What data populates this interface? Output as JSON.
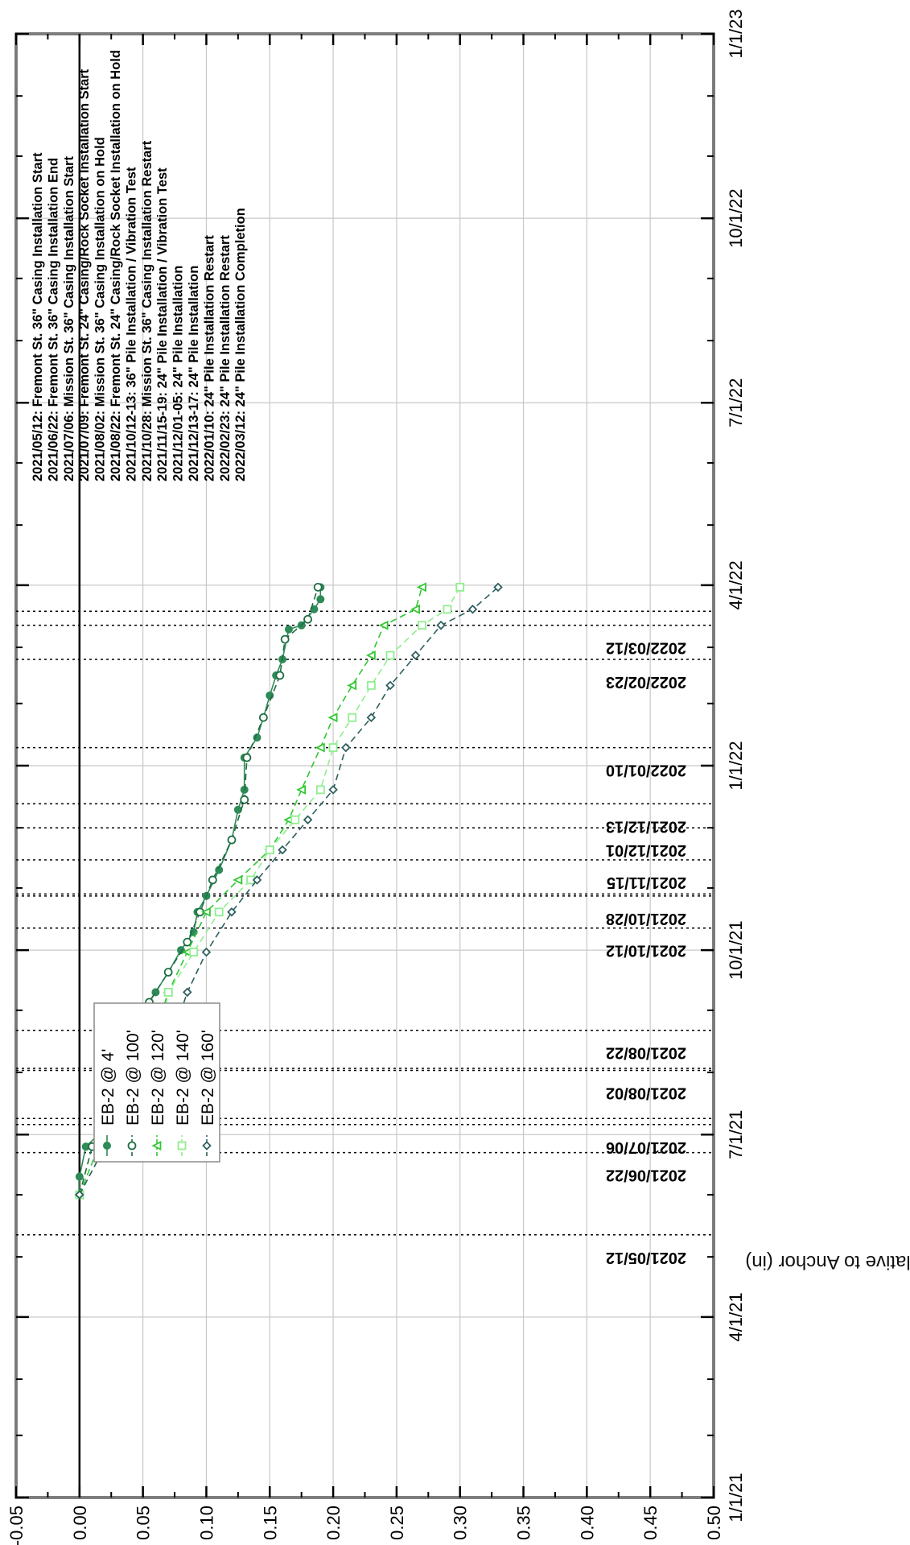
{
  "chart_data": {
    "type": "line",
    "orientation": "rotated-90",
    "ylabel": "Settlement Relative to Anchor (in)",
    "xlabel": "",
    "ylim": [
      -0.05,
      0.5
    ],
    "y_ticks": [
      "-0.05",
      "0.00",
      "0.05",
      "0.10",
      "0.15",
      "0.20",
      "0.25",
      "0.30",
      "0.35",
      "0.40",
      "0.45",
      "0.50"
    ],
    "x_range": [
      "2021-01-01",
      "2023-01-01"
    ],
    "x_ticks": [
      {
        "date": "2021-01-01",
        "label": "1/1/21"
      },
      {
        "date": "2021-04-01",
        "label": "4/1/21"
      },
      {
        "date": "2021-07-01",
        "label": "7/1/21"
      },
      {
        "date": "2021-10-01",
        "label": "10/1/21"
      },
      {
        "date": "2022-01-01",
        "label": "1/1/22"
      },
      {
        "date": "2022-04-01",
        "label": "4/1/22"
      },
      {
        "date": "2022-07-01",
        "label": "7/1/22"
      },
      {
        "date": "2022-10-01",
        "label": "10/1/22"
      },
      {
        "date": "2023-01-01",
        "label": "1/1/23"
      }
    ],
    "grid": true,
    "legend_position": "bottom-left (rotated view)",
    "event_lines": [
      {
        "date": "2021-05-12",
        "label": "2021/05/12"
      },
      {
        "date": "2021-06-22",
        "label": "2021/06/22"
      },
      {
        "date": "2021-07-06",
        "label": "2021/07/06"
      },
      {
        "date": "2021-07-09",
        "label": ""
      },
      {
        "date": "2021-08-02",
        "label": "2021/08/02"
      },
      {
        "date": "2021-08-03",
        "label": ""
      },
      {
        "date": "2021-08-22",
        "label": "2021/08/22"
      },
      {
        "date": "2021-10-12",
        "label": "2021/10/12"
      },
      {
        "date": "2021-10-28",
        "label": "2021/10/28"
      },
      {
        "date": "2021-10-29",
        "label": ""
      },
      {
        "date": "2021-11-15",
        "label": "2021/11/15"
      },
      {
        "date": "2021-12-01",
        "label": "2021/12/01"
      },
      {
        "date": "2021-12-13",
        "label": "2021/12/13"
      },
      {
        "date": "2022-01-10",
        "label": "2022/01/10"
      },
      {
        "date": "2022-02-23",
        "label": "2022/02/23"
      },
      {
        "date": "2022-03-12",
        "label": "2022/03/12"
      },
      {
        "date": "2022-03-19",
        "label": ""
      }
    ],
    "annotations": [
      "2021/05/12: Fremont St. 36\" Casing Installation Start",
      "2021/06/22: Fremont St. 36\" Casing Installation End",
      "2021/07/06: Mission St.  36\" Casing Installation Start",
      "2021/07/09: Fremont St. 24\" Casing/Rock Socket Installation Start",
      "2021/08/02: Mission St.  36\" Casing Installation on Hold",
      "2021/08/22: Fremont St. 24\" Casing/Rock Socket Installation on Hold",
      "2021/10/12-13: 36\" Pile Installation / Vibration Test",
      "2021/10/28: Mission St.  36\" Casing Installation Restart",
      "2021/11/15-19: 24\" Pile Installation / Vibration Test",
      "2021/12/01-05: 24\" Pile Installation",
      "2021/12/13-17: 24\" Pile Installation",
      "2022/01/10: 24\" Pile Installation Restart",
      "2022/02/23: 24\" Pile Installation Restart",
      "2022/03/12: 24\" Pile Installation Completion"
    ],
    "series": [
      {
        "name": "EB-2 @ 4'",
        "color": "#2e8b57",
        "marker": "filled-circle",
        "dash": "none",
        "points": [
          [
            "2021-06-01",
            0.0
          ],
          [
            "2021-06-10",
            0.0
          ],
          [
            "2021-06-25",
            0.005
          ],
          [
            "2021-07-01",
            0.015
          ],
          [
            "2021-07-10",
            0.02
          ],
          [
            "2021-07-20",
            0.03
          ],
          [
            "2021-08-01",
            0.035
          ],
          [
            "2021-08-10",
            0.04
          ],
          [
            "2021-08-22",
            0.045
          ],
          [
            "2021-09-01",
            0.05
          ],
          [
            "2021-09-10",
            0.06
          ],
          [
            "2021-09-20",
            0.07
          ],
          [
            "2021-10-01",
            0.08
          ],
          [
            "2021-10-10",
            0.09
          ],
          [
            "2021-10-20",
            0.093
          ],
          [
            "2021-10-28",
            0.1
          ],
          [
            "2021-11-10",
            0.11
          ],
          [
            "2021-11-25",
            0.12
          ],
          [
            "2021-12-10",
            0.125
          ],
          [
            "2021-12-20",
            0.13
          ],
          [
            "2022-01-05",
            0.13
          ],
          [
            "2022-01-15",
            0.14
          ],
          [
            "2022-01-25",
            0.145
          ],
          [
            "2022-02-05",
            0.15
          ],
          [
            "2022-02-15",
            0.155
          ],
          [
            "2022-02-23",
            0.16
          ],
          [
            "2022-03-10",
            0.165
          ],
          [
            "2022-03-12",
            0.175
          ],
          [
            "2022-03-20",
            0.185
          ],
          [
            "2022-03-25",
            0.19
          ],
          [
            "2022-03-31",
            0.19
          ]
        ]
      },
      {
        "name": "EB-2 @ 100'",
        "color": "#1f6e43",
        "marker": "open-circle",
        "dash": "dash",
        "points": [
          [
            "2021-06-01",
            0.0
          ],
          [
            "2021-06-25",
            0.01
          ],
          [
            "2021-07-05",
            0.02
          ],
          [
            "2021-07-20",
            0.03
          ],
          [
            "2021-08-05",
            0.04
          ],
          [
            "2021-08-22",
            0.048
          ],
          [
            "2021-09-05",
            0.055
          ],
          [
            "2021-09-20",
            0.07
          ],
          [
            "2021-10-05",
            0.085
          ],
          [
            "2021-10-20",
            0.095
          ],
          [
            "2021-11-05",
            0.105
          ],
          [
            "2021-11-25",
            0.12
          ],
          [
            "2021-12-15",
            0.13
          ],
          [
            "2022-01-05",
            0.132
          ],
          [
            "2022-01-25",
            0.145
          ],
          [
            "2022-02-15",
            0.158
          ],
          [
            "2022-03-05",
            0.162
          ],
          [
            "2022-03-15",
            0.18
          ],
          [
            "2022-03-31",
            0.188
          ]
        ]
      },
      {
        "name": "EB-2 @ 120'",
        "color": "#32c832",
        "marker": "triangle",
        "dash": "dash",
        "points": [
          [
            "2021-06-01",
            0.0
          ],
          [
            "2021-06-25",
            0.015
          ],
          [
            "2021-07-10",
            0.03
          ],
          [
            "2021-08-01",
            0.045
          ],
          [
            "2021-08-22",
            0.06
          ],
          [
            "2021-09-10",
            0.07
          ],
          [
            "2021-09-30",
            0.085
          ],
          [
            "2021-10-20",
            0.1
          ],
          [
            "2021-11-05",
            0.125
          ],
          [
            "2021-11-20",
            0.15
          ],
          [
            "2021-12-05",
            0.165
          ],
          [
            "2021-12-20",
            0.175
          ],
          [
            "2022-01-10",
            0.19
          ],
          [
            "2022-01-25",
            0.2
          ],
          [
            "2022-02-10",
            0.215
          ],
          [
            "2022-02-25",
            0.23
          ],
          [
            "2022-03-12",
            0.24
          ],
          [
            "2022-03-20",
            0.265
          ],
          [
            "2022-03-31",
            0.27
          ]
        ]
      },
      {
        "name": "EB-2 @ 140'",
        "color": "#90ee90",
        "marker": "open-square",
        "dash": "dash",
        "points": [
          [
            "2021-06-01",
            0.0
          ],
          [
            "2021-06-25",
            0.02
          ],
          [
            "2021-07-10",
            0.035
          ],
          [
            "2021-08-01",
            0.05
          ],
          [
            "2021-08-22",
            0.065
          ],
          [
            "2021-09-10",
            0.07
          ],
          [
            "2021-09-30",
            0.09
          ],
          [
            "2021-10-20",
            0.11
          ],
          [
            "2021-11-05",
            0.135
          ],
          [
            "2021-11-20",
            0.15
          ],
          [
            "2021-12-05",
            0.17
          ],
          [
            "2021-12-20",
            0.19
          ],
          [
            "2022-01-10",
            0.2
          ],
          [
            "2022-01-25",
            0.215
          ],
          [
            "2022-02-10",
            0.23
          ],
          [
            "2022-02-25",
            0.245
          ],
          [
            "2022-03-12",
            0.27
          ],
          [
            "2022-03-20",
            0.29
          ],
          [
            "2022-03-31",
            0.3
          ]
        ]
      },
      {
        "name": "EB-2 @ 160'",
        "color": "#2f5f5f",
        "marker": "open-diamond",
        "dash": "dash",
        "points": [
          [
            "2021-06-01",
            0.0
          ],
          [
            "2021-06-25",
            0.02
          ],
          [
            "2021-07-10",
            0.04
          ],
          [
            "2021-08-01",
            0.055
          ],
          [
            "2021-08-22",
            0.075
          ],
          [
            "2021-09-10",
            0.085
          ],
          [
            "2021-09-30",
            0.1
          ],
          [
            "2021-10-20",
            0.12
          ],
          [
            "2021-11-05",
            0.14
          ],
          [
            "2021-11-20",
            0.16
          ],
          [
            "2021-12-05",
            0.18
          ],
          [
            "2021-12-20",
            0.2
          ],
          [
            "2022-01-10",
            0.21
          ],
          [
            "2022-01-25",
            0.23
          ],
          [
            "2022-02-10",
            0.245
          ],
          [
            "2022-02-25",
            0.265
          ],
          [
            "2022-03-12",
            0.285
          ],
          [
            "2022-03-20",
            0.31
          ],
          [
            "2022-03-31",
            0.33
          ]
        ]
      }
    ]
  }
}
